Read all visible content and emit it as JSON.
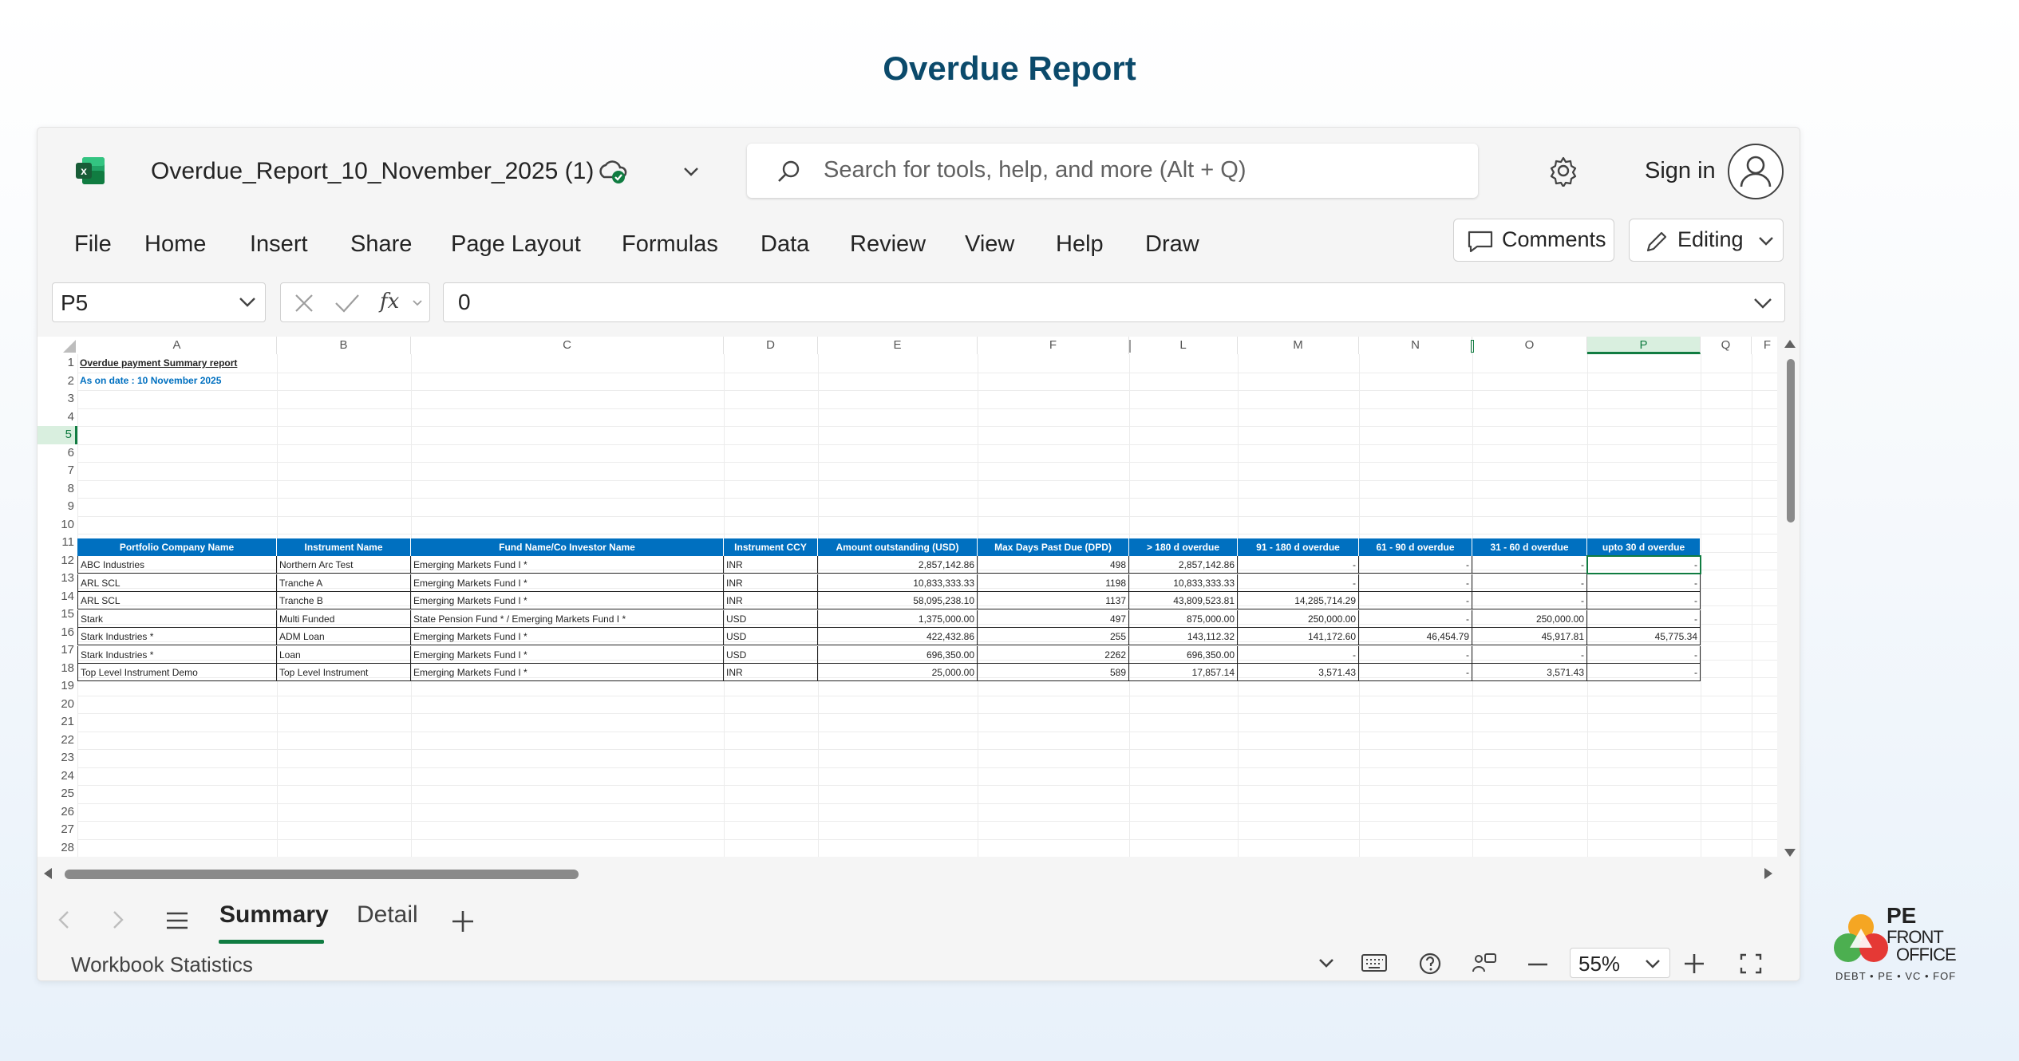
{
  "page_title": "Overdue Report",
  "titlebar": {
    "file_name": "Overdue_Report_10_November_2025 (1)",
    "search_placeholder": "Search for tools, help, and more (Alt + Q)",
    "sign_in": "Sign in"
  },
  "menu": [
    "File",
    "Home",
    "Insert",
    "Share",
    "Page Layout",
    "Formulas",
    "Data",
    "Review",
    "View",
    "Help",
    "Draw"
  ],
  "buttons": {
    "comments": "Comments",
    "editing": "Editing"
  },
  "formula_bar": {
    "name_box": "P5",
    "fx_symbol": "fx",
    "value": "0"
  },
  "columns": [
    "A",
    "B",
    "C",
    "D",
    "E",
    "F",
    "L",
    "M",
    "N",
    "O",
    "P",
    "Q",
    "F"
  ],
  "selected_column": "P",
  "rows": [
    "1",
    "2",
    "3",
    "4",
    "5",
    "6",
    "7",
    "8",
    "9",
    "10",
    "11",
    "12",
    "13",
    "14",
    "15",
    "16",
    "17",
    "18",
    "19",
    "20",
    "21",
    "22",
    "23",
    "24",
    "25",
    "26",
    "27",
    "28"
  ],
  "selected_row": "5",
  "report": {
    "title": "Overdue payment Summary report",
    "as_on": "As on date : 10 November 2025",
    "headers": [
      "Portfolio Company Name",
      "Instrument Name",
      "Fund Name/Co Investor Name",
      "Instrument CCY",
      "Amount outstanding (USD)",
      "Max Days Past Due (DPD)",
      "> 180 d overdue",
      "91 - 180 d overdue",
      "61 - 90 d overdue",
      "31 - 60 d overdue",
      "upto 30 d overdue"
    ],
    "data_rows": [
      [
        "ABC Industries",
        "Northern Arc Test",
        "Emerging Markets Fund I *",
        "INR",
        "2,857,142.86",
        "498",
        "2,857,142.86",
        "-",
        "-",
        "-",
        "-"
      ],
      [
        "ARL SCL",
        "Tranche A",
        "Emerging Markets Fund I *",
        "INR",
        "10,833,333.33",
        "1198",
        "10,833,333.33",
        "-",
        "-",
        "-",
        "-"
      ],
      [
        "ARL SCL",
        "Tranche B",
        "Emerging Markets Fund I *",
        "INR",
        "58,095,238.10",
        "1137",
        "43,809,523.81",
        "14,285,714.29",
        "-",
        "-",
        "-"
      ],
      [
        "Stark",
        "Multi Funded",
        "State Pension Fund * / Emerging Markets Fund I *",
        "USD",
        "1,375,000.00",
        "497",
        "875,000.00",
        "250,000.00",
        "-",
        "250,000.00",
        "-"
      ],
      [
        "Stark Industries *",
        "ADM Loan",
        "Emerging Markets Fund I *",
        "USD",
        "422,432.86",
        "255",
        "143,112.32",
        "141,172.60",
        "46,454.79",
        "45,917.81",
        "45,775.34"
      ],
      [
        "Stark Industries *",
        "Loan",
        "Emerging Markets Fund I *",
        "USD",
        "696,350.00",
        "2262",
        "696,350.00",
        "-",
        "-",
        "-",
        "-"
      ],
      [
        "Top Level Instrument Demo",
        "Top Level Instrument",
        "Emerging Markets Fund I *",
        "INR",
        "25,000.00",
        "589",
        "17,857.14",
        "3,571.43",
        "-",
        "3,571.43",
        "-"
      ]
    ]
  },
  "sheet_tabs": [
    "Summary",
    "Detail"
  ],
  "active_tab": "Summary",
  "status": {
    "label": "Workbook Statistics",
    "zoom": "55%"
  },
  "brand": {
    "line1": "PE",
    "line2": "FRONT",
    "line3": "OFFICE",
    "tagline": "DEBT • PE • VC • FOF"
  },
  "colors": {
    "accent": "#107c41",
    "header_fill": "#0070c0",
    "title": "#0b4a6b"
  }
}
